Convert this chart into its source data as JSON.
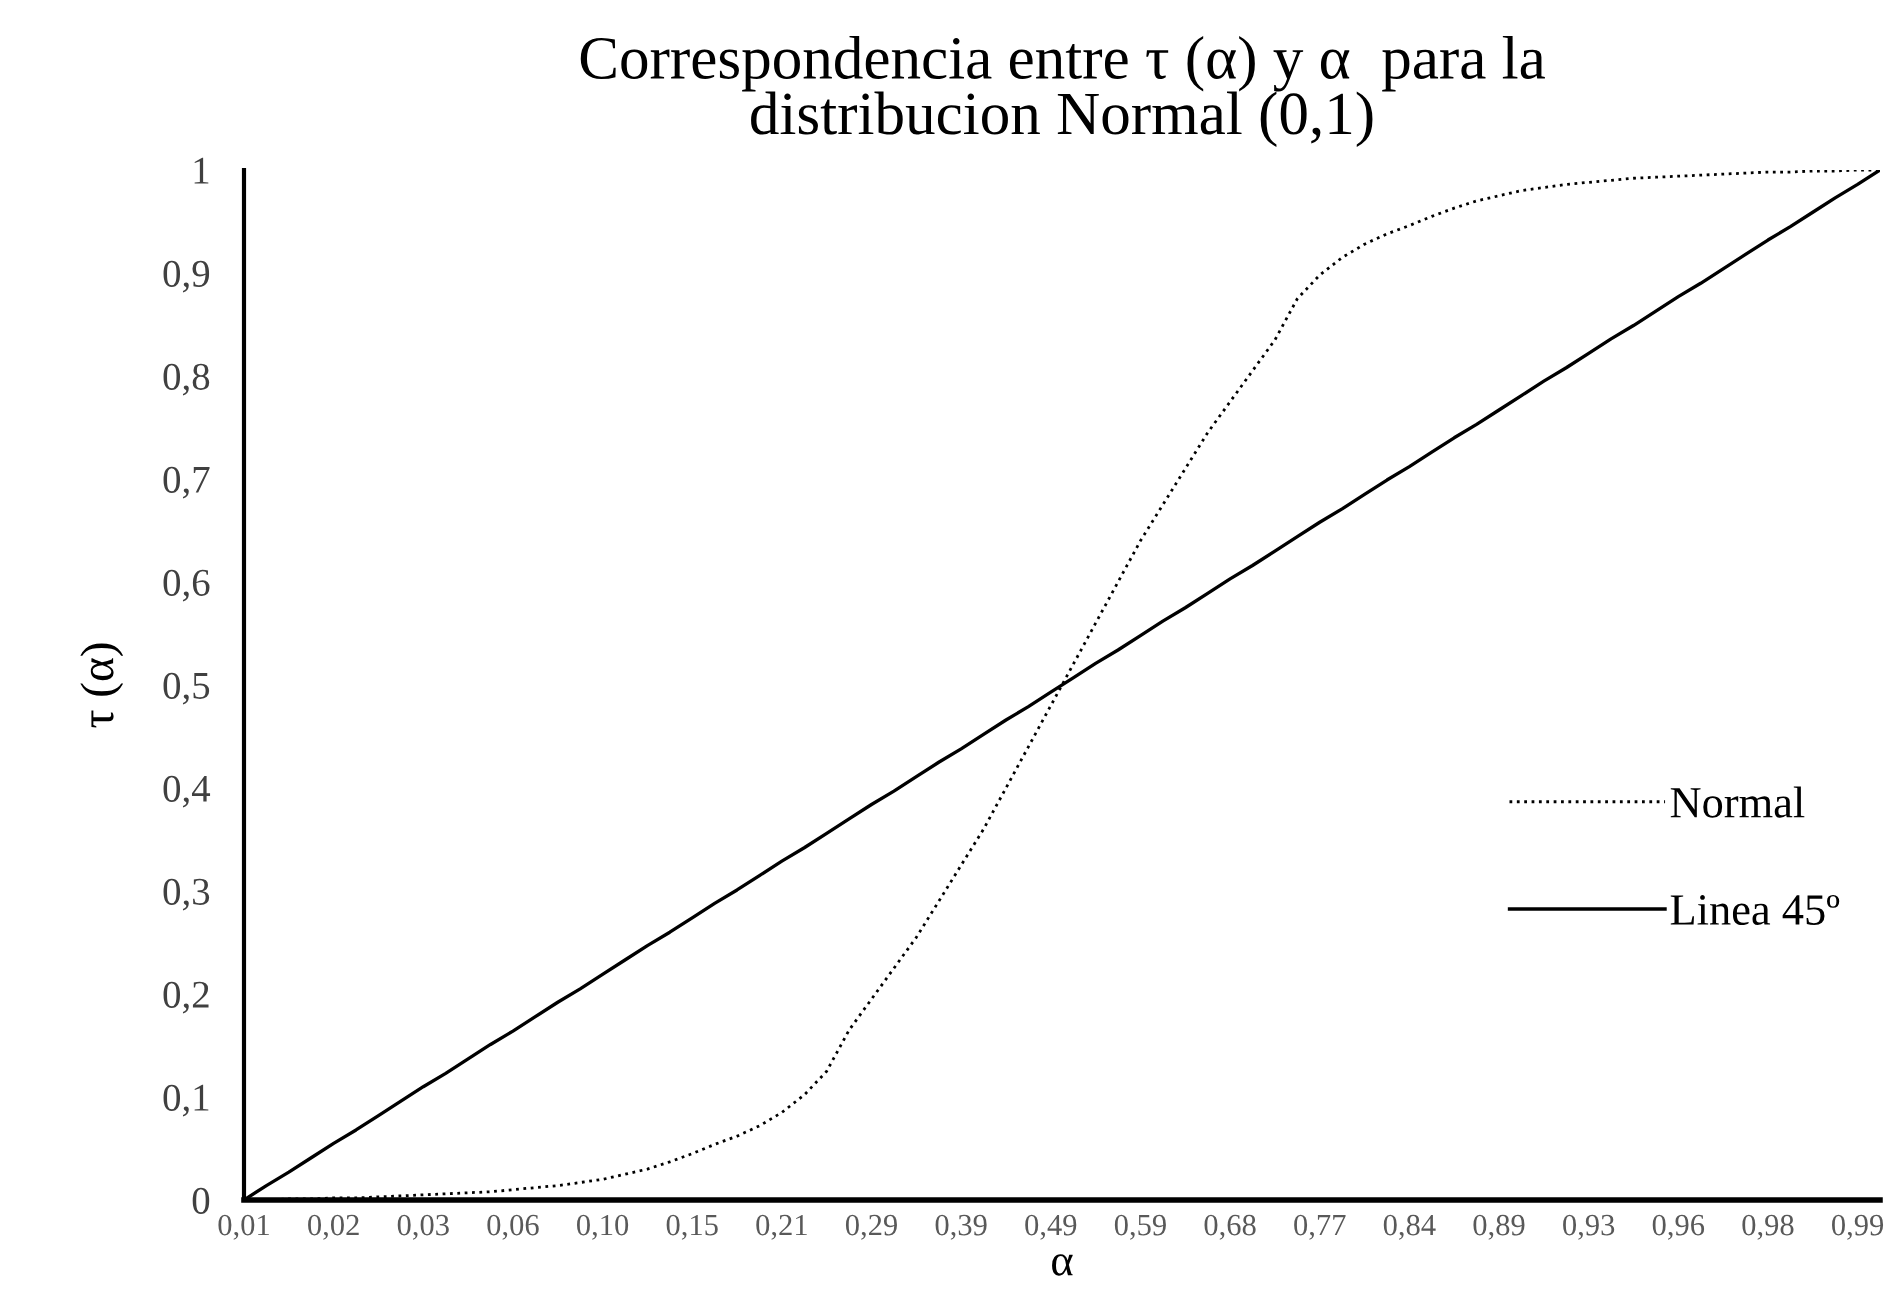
{
  "chart_data": {
    "type": "line",
    "title": "Correspondencia entre τ (α) y α  para la distribucion Normal (0,1)",
    "xlabel": "α",
    "ylabel": "τ (α)",
    "categories": [
      "0,01",
      null,
      null,
      null,
      "0,02",
      null,
      null,
      null,
      "0,03",
      null,
      null,
      null,
      "0,06",
      null,
      null,
      null,
      "0,10",
      null,
      null,
      null,
      "0,15",
      null,
      null,
      null,
      "0,21",
      null,
      null,
      null,
      "0,29",
      null,
      null,
      null,
      "0,39",
      null,
      null,
      null,
      "0,49",
      null,
      null,
      null,
      "0,59",
      null,
      null,
      null,
      "0,68",
      null,
      null,
      null,
      "0,77",
      null,
      null,
      null,
      "0,84",
      null,
      null,
      null,
      "0,89",
      null,
      null,
      null,
      "0,93",
      null,
      null,
      null,
      "0,96",
      null,
      null,
      null,
      "0,98",
      null,
      null,
      null,
      "0,99",
      null
    ],
    "series": [
      {
        "name": "Normal",
        "color": "#000000",
        "line_style": "dotted",
        "values": [
          0.0,
          0.0,
          0.001,
          0.001,
          0.002,
          0.002,
          0.003,
          0.004,
          0.005,
          0.006,
          0.007,
          0.008,
          0.01,
          0.012,
          0.014,
          0.017,
          0.02,
          0.025,
          0.03,
          0.037,
          0.045,
          0.054,
          0.062,
          0.072,
          0.085,
          0.102,
          0.125,
          0.165,
          0.195,
          0.225,
          0.255,
          0.29,
          0.325,
          0.36,
          0.4,
          0.44,
          0.48,
          0.52,
          0.56,
          0.6,
          0.64,
          0.675,
          0.71,
          0.745,
          0.775,
          0.805,
          0.835,
          0.875,
          0.898,
          0.915,
          0.928,
          0.938,
          0.946,
          0.955,
          0.963,
          0.97,
          0.975,
          0.98,
          0.983,
          0.986,
          0.988,
          0.99,
          0.992,
          0.993,
          0.994,
          0.995,
          0.996,
          0.997,
          0.998,
          0.998,
          0.999,
          0.999,
          1.0,
          1.0
        ]
      },
      {
        "name": "Linea 45º",
        "color": "#000000",
        "line_style": "solid",
        "values": [
          0.0,
          0.014,
          0.027,
          0.041,
          0.055,
          0.068,
          0.082,
          0.096,
          0.11,
          0.123,
          0.137,
          0.151,
          0.164,
          0.178,
          0.192,
          0.205,
          0.219,
          0.233,
          0.247,
          0.26,
          0.274,
          0.288,
          0.301,
          0.315,
          0.329,
          0.342,
          0.356,
          0.37,
          0.384,
          0.397,
          0.411,
          0.425,
          0.438,
          0.452,
          0.466,
          0.479,
          0.493,
          0.507,
          0.521,
          0.534,
          0.548,
          0.562,
          0.575,
          0.589,
          0.603,
          0.616,
          0.63,
          0.644,
          0.658,
          0.671,
          0.685,
          0.699,
          0.712,
          0.726,
          0.74,
          0.753,
          0.767,
          0.781,
          0.795,
          0.808,
          0.822,
          0.836,
          0.849,
          0.863,
          0.877,
          0.89,
          0.904,
          0.918,
          0.932,
          0.945,
          0.959,
          0.973,
          0.986,
          1.0
        ]
      }
    ],
    "ylim": [
      0,
      1
    ],
    "yticks": [
      0,
      {
        "value": 0.1,
        "label": "0,1"
      },
      {
        "value": 0.2,
        "label": "0,2"
      },
      {
        "value": 0.3,
        "label": "0,3"
      },
      {
        "value": 0.4,
        "label": "0,4"
      },
      {
        "value": 0.5,
        "label": "0,5"
      },
      {
        "value": 0.6,
        "label": "0,6"
      },
      {
        "value": 0.7,
        "label": "0,7"
      },
      {
        "value": 0.8,
        "label": "0,8"
      },
      {
        "value": 0.9,
        "label": "0,9"
      },
      1
    ],
    "grid": false,
    "legend": "right",
    "marker": "none"
  }
}
